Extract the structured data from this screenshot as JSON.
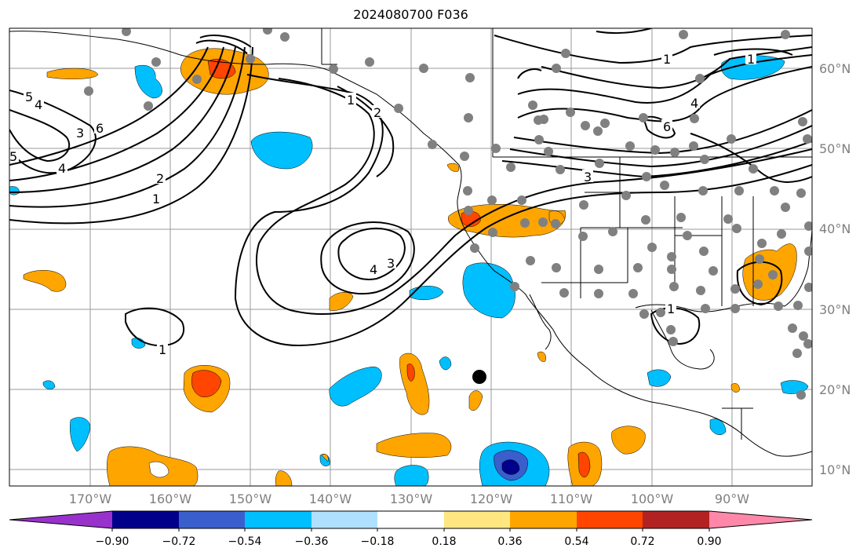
{
  "title": "2024080700 F036",
  "lat_labels": [
    "60°N",
    "50°N",
    "40°N",
    "30°N",
    "20°N",
    "10°N"
  ],
  "lon_labels": [
    "170°W",
    "160°W",
    "150°W",
    "140°W",
    "130°W",
    "120°W",
    "110°W",
    "100°W",
    "90°W"
  ],
  "colorbar": {
    "ticks": [
      "−0.90",
      "−0.72",
      "−0.54",
      "−0.36",
      "−0.18",
      "0.18",
      "0.36",
      "0.54",
      "0.72",
      "0.90"
    ],
    "colors": [
      "#9932cc",
      "#00008b",
      "#3a5fcd",
      "#00bfff",
      "#b0e0ff",
      "#ffffff",
      "#ffe680",
      "#ffa500",
      "#ff4500",
      "#b22222",
      "#ff88aa"
    ]
  },
  "contour_labels": [
    "1",
    "2",
    "3",
    "4",
    "5",
    "6"
  ],
  "colors": {
    "land_station": "#808080",
    "marker": "#000000",
    "axis_label": "#7f7f7f"
  }
}
